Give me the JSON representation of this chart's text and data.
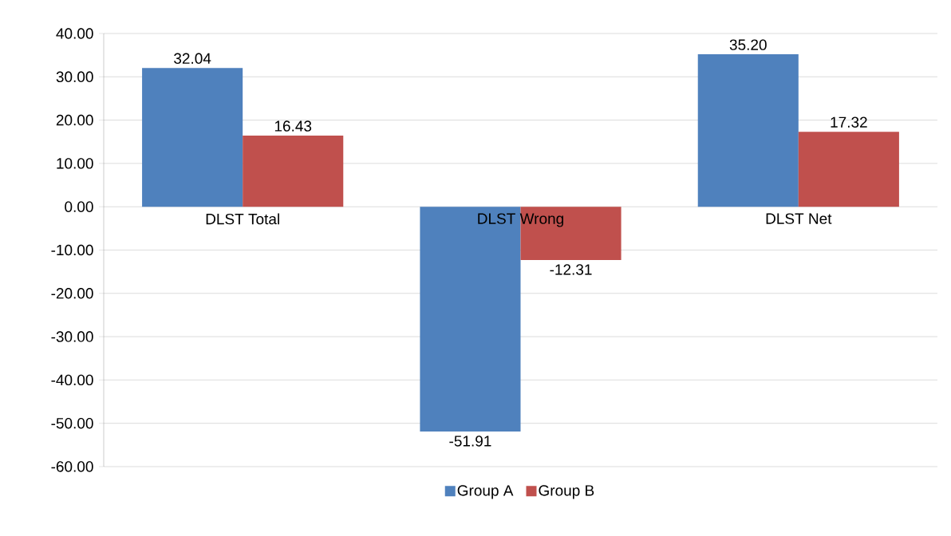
{
  "chart_data": {
    "type": "bar",
    "categories": [
      "DLST Total",
      "DLST Wrong",
      "DLST Net"
    ],
    "series": [
      {
        "name": "Group A",
        "color": "#4f81bd",
        "values": [
          32.04,
          -51.91,
          35.2
        ],
        "value_labels": [
          "32.04",
          "-51.91",
          "35.20"
        ]
      },
      {
        "name": "Group B",
        "color": "#c0504d",
        "values": [
          16.43,
          -12.31,
          17.32
        ],
        "value_labels": [
          "16.43",
          "-12.31",
          "17.32"
        ]
      }
    ],
    "ylim": [
      -60,
      40
    ],
    "yticks": [
      {
        "value": -60,
        "label": "-60.00"
      },
      {
        "value": -50,
        "label": "-50.00"
      },
      {
        "value": -40,
        "label": "-40.00"
      },
      {
        "value": -30,
        "label": "-30.00"
      },
      {
        "value": -20,
        "label": "-20.00"
      },
      {
        "value": -10,
        "label": "-10.00"
      },
      {
        "value": 0,
        "label": "0.00"
      },
      {
        "value": 10,
        "label": "10.00"
      },
      {
        "value": 20,
        "label": "20.00"
      },
      {
        "value": 30,
        "label": "30.00"
      },
      {
        "value": 40,
        "label": "40.00"
      }
    ],
    "grid": "y",
    "legend": "bottom"
  }
}
